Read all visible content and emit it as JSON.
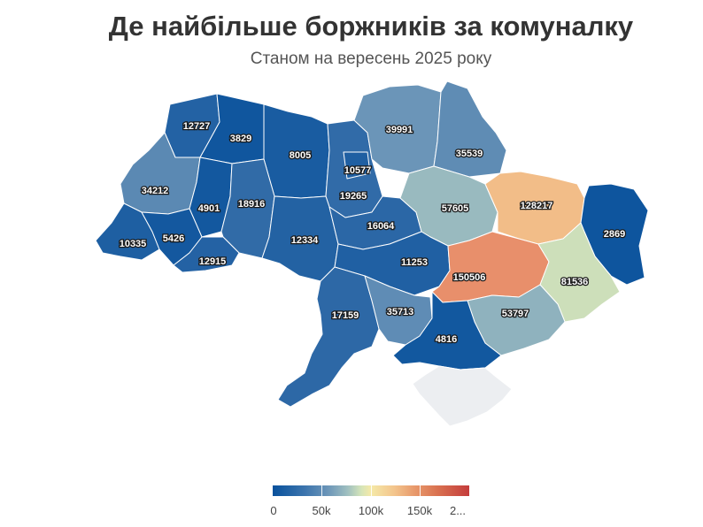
{
  "title": "Де найбільше боржників за комуналку",
  "subtitle": "Станом на вересень 2025 року",
  "legend": {
    "ticks": [
      "0",
      "50k",
      "100k",
      "150k",
      "2..."
    ],
    "range": [
      0,
      200000
    ],
    "colors": [
      "#08519c",
      "#6b95b8",
      "#f5e9a8",
      "#e89a6c",
      "#c43c3c"
    ]
  },
  "regions": [
    {
      "id": "volyn",
      "value": 12727
    },
    {
      "id": "rivne",
      "value": 3829
    },
    {
      "id": "zhytomyr",
      "value": 8005
    },
    {
      "id": "kyiv-city",
      "value": 10577
    },
    {
      "id": "chernihiv",
      "value": 39991
    },
    {
      "id": "sumy",
      "value": 35539
    },
    {
      "id": "lviv",
      "value": 34212
    },
    {
      "id": "ternopil",
      "value": 4901
    },
    {
      "id": "khmelnytskyi",
      "value": 18916
    },
    {
      "id": "kyiv-oblast",
      "value": 19265
    },
    {
      "id": "poltava",
      "value": 57605
    },
    {
      "id": "kharkiv",
      "value": 128217
    },
    {
      "id": "luhansk",
      "value": 2869
    },
    {
      "id": "zakarpattia",
      "value": 10335
    },
    {
      "id": "ivano-frankivsk",
      "value": 5426
    },
    {
      "id": "chernivtsi",
      "value": 12915
    },
    {
      "id": "vinnytsia",
      "value": 12334
    },
    {
      "id": "cherkasy",
      "value": 16064
    },
    {
      "id": "kirovohrad",
      "value": 11253
    },
    {
      "id": "dnipropetrovsk",
      "value": 150506
    },
    {
      "id": "donetsk",
      "value": 81536
    },
    {
      "id": "odesa",
      "value": 17159
    },
    {
      "id": "mykolaiv",
      "value": 35713
    },
    {
      "id": "zaporizhzhia",
      "value": 53797
    },
    {
      "id": "kherson",
      "value": 4816
    },
    {
      "id": "crimea",
      "value": null
    }
  ]
}
